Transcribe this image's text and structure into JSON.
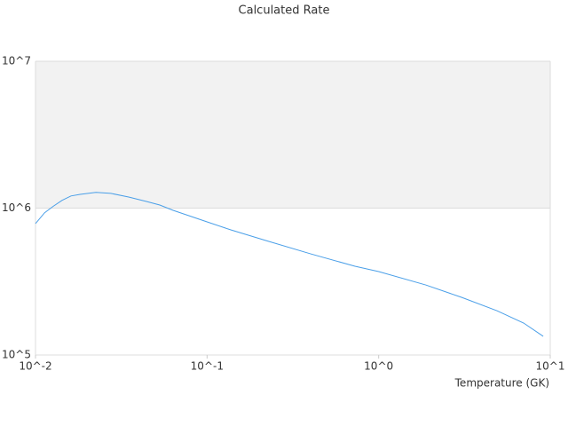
{
  "chart_data": {
    "type": "line",
    "title": "Calculated Rate",
    "x_label": "Temperature (GK)",
    "xscale": "log",
    "yscale": "log",
    "band_color": "#f2f2f2",
    "grid": true,
    "xlim": [
      0.01,
      10
    ],
    "ylim": [
      100000,
      10000000
    ],
    "xticks": [
      {
        "value": 0.01,
        "label": "10^-2"
      },
      {
        "value": 0.1,
        "label": "10^-1"
      },
      {
        "value": 1,
        "label": "10^0"
      },
      {
        "value": 10,
        "label": "10^1"
      }
    ],
    "yticks": [
      {
        "value": 100000,
        "label": "10^5"
      },
      {
        "value": 1000000,
        "label": "10^6"
      },
      {
        "value": 10000000,
        "label": "10^7"
      }
    ],
    "x": [
      0.01,
      0.0113,
      0.0127,
      0.0143,
      0.0161,
      0.0182,
      0.0225,
      0.0275,
      0.0349,
      0.0443,
      0.053,
      0.0634,
      0.1,
      0.1375,
      0.221,
      0.402,
      0.728,
      1,
      1.88,
      3.04,
      4.9,
      7.0,
      9.1
    ],
    "series": [
      {
        "color": "#4a9fe8",
        "values": [
          784000,
          930000,
          1030000,
          1130000,
          1210000,
          1240000,
          1280000,
          1260000,
          1190000,
          1110000,
          1050000,
          966000,
          806000,
          711000,
          601000,
          488000,
          402000,
          370000,
          300000,
          247000,
          200000,
          165000,
          134000
        ]
      }
    ]
  }
}
